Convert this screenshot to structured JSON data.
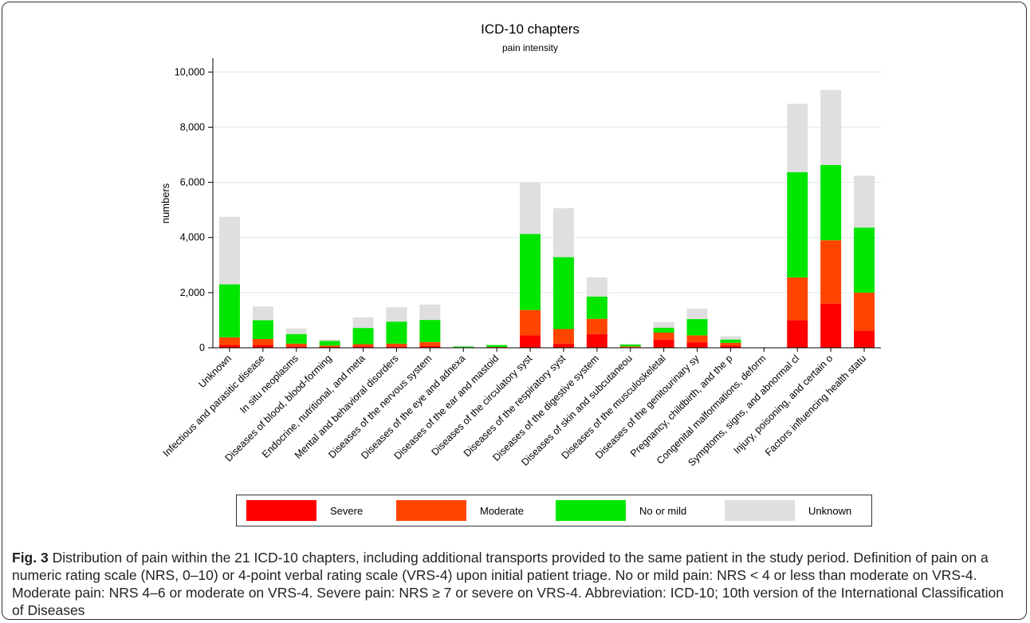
{
  "chart_data": {
    "type": "bar",
    "stacked": true,
    "title": "ICD-10 chapters",
    "subtitle": "pain intensity",
    "ylabel": "numbers",
    "xlabel": "",
    "ylim": [
      0,
      10500
    ],
    "yticks": [
      0,
      2000,
      4000,
      6000,
      8000,
      10000
    ],
    "ytick_labels": [
      "0",
      "2,000",
      "4,000",
      "6,000",
      "8,000",
      "10,000"
    ],
    "grid": true,
    "legend_position": "bottom",
    "categories": [
      "Unknown",
      "Infectious and parasitic disease",
      "In situ neoplasms",
      "Diseases of blood, blood-forming",
      "Endocrine, nutritional, and meta",
      "Mental and behavioral disorders",
      "Diseases of the nervous system",
      "Diseases of the eye and adnexa",
      "Diseases of the ear and mastoid",
      "Diseases of the circulatory syst",
      "Diseases of the respiratory syst",
      "Diseases of the digestive system",
      "Diseases of skin and subcutaneou",
      "Diseases of the musculoskeletal",
      "Diseases of the genitourinary sy",
      "Pregnancy, childbirth, and the p",
      "Congenital malformations, deform",
      "Symptoms, signs, and abnormal cl",
      "Injury, poisoning, and certain o",
      "Factors influencing health statu"
    ],
    "series": [
      {
        "name": "Severe",
        "color": "#ff0000",
        "values": [
          100,
          100,
          50,
          30,
          50,
          50,
          60,
          10,
          10,
          450,
          150,
          500,
          20,
          300,
          200,
          80,
          0,
          1000,
          1600,
          620
        ]
      },
      {
        "name": "Moderate",
        "color": "#ff4500",
        "values": [
          280,
          220,
          100,
          50,
          80,
          100,
          150,
          10,
          20,
          920,
          530,
          550,
          30,
          250,
          250,
          100,
          0,
          1550,
          2300,
          1380
        ]
      },
      {
        "name": "No or mild",
        "color": "#00e600",
        "values": [
          1920,
          680,
          350,
          170,
          590,
          800,
          800,
          30,
          70,
          2760,
          2610,
          810,
          70,
          180,
          590,
          120,
          0,
          3820,
          2730,
          2360
        ]
      },
      {
        "name": "Unknown",
        "color": "#dfdfdf",
        "values": [
          2450,
          500,
          200,
          50,
          380,
          520,
          560,
          10,
          0,
          1870,
          1770,
          690,
          20,
          200,
          380,
          120,
          0,
          2480,
          2720,
          1880
        ]
      }
    ]
  },
  "caption": {
    "fig_label": "Fig. 3",
    "text": " Distribution of pain within the 21 ICD-10 chapters, including additional transports provided to the same patient in the study period. Definition of pain on a numeric rating scale (NRS, 0–10) or 4-point verbal rating scale (VRS-4) upon initial patient triage. No or mild pain: NRS < 4 or less than moderate on VRS-4. Moderate pain: NRS 4–6 or moderate on VRS-4. Severe pain: NRS ≥ 7 or severe on VRS-4. Abbreviation: ICD-10; 10th version of the International Classification of Diseases"
  }
}
